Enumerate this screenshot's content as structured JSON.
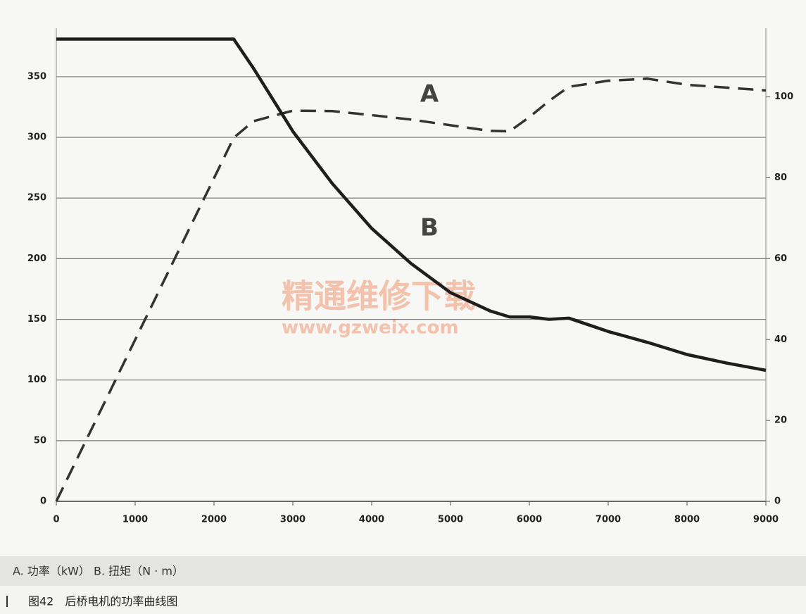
{
  "chart_data": {
    "type": "line",
    "annotations": [
      "精通维修下载",
      "www.gzweix.com"
    ],
    "legend_text": "A. 功率（kW） B. 扭矩（N · m）",
    "caption": "图42　后桥电机的功率曲线图",
    "x": [
      0,
      2250,
      2500,
      3000,
      3500,
      4000,
      4500,
      5000,
      5500,
      5750,
      6000,
      6250,
      6500,
      7000,
      7500,
      8000,
      8500,
      9000
    ],
    "series": [
      {
        "name": "A",
        "color": "#333333",
        "axis": "y2",
        "dash": true,
        "values": [
          0,
          89.9,
          94,
          96.6,
          96.5,
          95.5,
          94.4,
          93,
          91.6,
          91.5,
          95,
          99,
          102.5,
          104,
          104.5,
          103,
          102.3,
          101.6
        ]
      },
      {
        "name": "B",
        "color": "#1e1e1e",
        "axis": "y",
        "dash": false,
        "values": [
          381,
          381,
          357,
          305,
          262,
          225,
          196,
          172,
          157,
          152,
          152,
          150,
          151,
          140,
          131,
          121,
          114,
          108
        ]
      }
    ],
    "xlim": [
      0,
      9000
    ],
    "xticks": [
      0,
      1000,
      2000,
      3000,
      4000,
      5000,
      6000,
      7000,
      8000,
      9000
    ],
    "ylim": [
      0,
      390
    ],
    "yticks": [
      0,
      50,
      100,
      150,
      200,
      250,
      300,
      350
    ],
    "y2lim": [
      0,
      117
    ],
    "y2ticks": [
      0,
      20,
      40,
      60,
      80,
      100
    ],
    "grid": true
  }
}
